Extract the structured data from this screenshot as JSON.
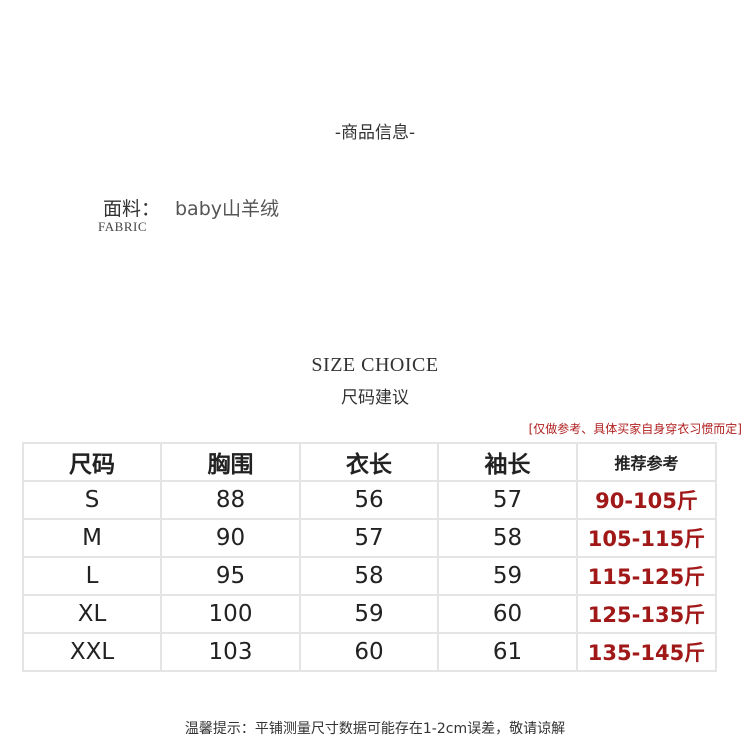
{
  "section_title": "-商品信息-",
  "fabric": {
    "label": "面料：",
    "value": "baby山羊绒",
    "label_en": "FABRIC"
  },
  "size_choice": {
    "title_en": "SIZE CHOICE",
    "title_cn": "尺码建议"
  },
  "note": "[仅做参考、具体买家自身穿衣习惯而定]",
  "table": {
    "headers": [
      "尺码",
      "胸围",
      "衣长",
      "袖长",
      "推荐参考"
    ],
    "rows": [
      [
        "S",
        "88",
        "56",
        "57",
        "90-105斤"
      ],
      [
        "M",
        "90",
        "57",
        "58",
        "105-115斤"
      ],
      [
        "L",
        "95",
        "58",
        "59",
        "115-125斤"
      ],
      [
        "XL",
        "100",
        "59",
        "60",
        "125-135斤"
      ],
      [
        "XXL",
        "103",
        "60",
        "61",
        "135-145斤"
      ]
    ]
  },
  "tip": "温馨提示：平铺测量尺寸数据可能存在1-2cm误差，敬请谅解",
  "colors": {
    "accent": "#a01818",
    "border": "#e4e4e4"
  }
}
